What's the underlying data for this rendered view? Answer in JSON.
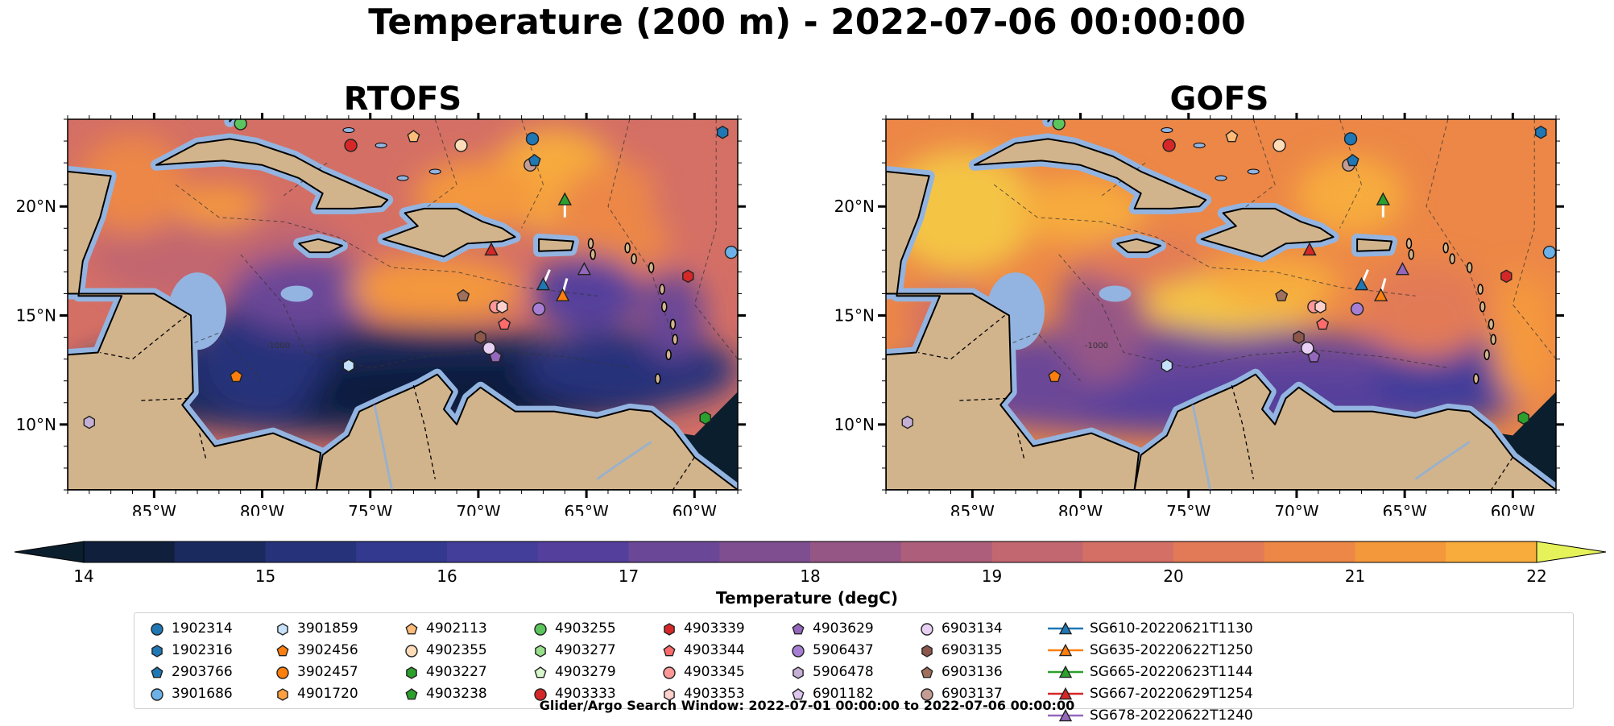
{
  "figure": {
    "title": "Temperature (200 m) - 2022-07-06 00:00:00",
    "footer": "Glider/Argo Search Window: 2022-07-01 00:00:00 to 2022-07-06 00:00:00"
  },
  "panels": [
    {
      "title": "RTOFS",
      "contour_label": "-1000"
    },
    {
      "title": "GOFS",
      "contour_label": "-1000"
    }
  ],
  "axes": {
    "lat_ticks": [
      "20°N",
      "15°N",
      "10°N"
    ],
    "lat_values": [
      20,
      15,
      10
    ],
    "lon_ticks": [
      "85°W",
      "80°W",
      "75°W",
      "70°W",
      "65°W",
      "60°W"
    ],
    "lon_values": [
      -85,
      -80,
      -75,
      -70,
      -65,
      -60
    ],
    "lon_range": [
      -89,
      -58
    ],
    "lat_range": [
      7,
      24
    ]
  },
  "colorbar": {
    "label": "Temperature (degC)",
    "min": 14,
    "max": 22,
    "step": 0.5,
    "ticks": [
      "14",
      "15",
      "16",
      "17",
      "18",
      "19",
      "20",
      "21",
      "22"
    ],
    "tick_values": [
      14,
      15,
      16,
      17,
      18,
      19,
      20,
      21,
      22
    ],
    "extend": "both",
    "colors": [
      "#0f1f3c",
      "#1a2a5e",
      "#26337a",
      "#33398f",
      "#433e9a",
      "#543f9c",
      "#6a4797",
      "#7e4e91",
      "#955686",
      "#ac5e7a",
      "#c26670",
      "#d46f65",
      "#e27a57",
      "#ec8747",
      "#f4983c",
      "#f7ac3c",
      "#f4c545"
    ],
    "under_color": "#0b1e2e",
    "over_color": "#e6f25a"
  },
  "colors": {
    "land": "#d2b48c",
    "shelf": "#93b4e0",
    "warm": "#f4a23c",
    "cool": "#3a2f7e"
  },
  "legend": {
    "items": [
      {
        "label": "1902314",
        "marker": "circle",
        "color": "#1f77b4"
      },
      {
        "label": "1902316",
        "marker": "hexagon",
        "color": "#1f77b4"
      },
      {
        "label": "2903766",
        "marker": "pentagon",
        "color": "#1f77b4"
      },
      {
        "label": "3901686",
        "marker": "circle",
        "color": "#6cb2e8"
      },
      {
        "label": "3901859",
        "marker": "hexagon",
        "color": "#c6e2fa"
      },
      {
        "label": "3902456",
        "marker": "pentagon",
        "color": "#ff7f0e"
      },
      {
        "label": "3902457",
        "marker": "circle",
        "color": "#ff7f0e"
      },
      {
        "label": "4901720",
        "marker": "hexagon",
        "color": "#ff9f3e"
      },
      {
        "label": "4902113",
        "marker": "pentagon",
        "color": "#ffbb78"
      },
      {
        "label": "4902355",
        "marker": "circle",
        "color": "#ffdcb8"
      },
      {
        "label": "4903227",
        "marker": "hexagon",
        "color": "#2ca02c"
      },
      {
        "label": "4903238",
        "marker": "pentagon",
        "color": "#2ca02c"
      },
      {
        "label": "4903255",
        "marker": "circle",
        "color": "#5cc45c"
      },
      {
        "label": "4903277",
        "marker": "hexagon",
        "color": "#98df8a"
      },
      {
        "label": "4903279",
        "marker": "pentagon",
        "color": "#d8f5cc"
      },
      {
        "label": "4903333",
        "marker": "circle",
        "color": "#d62728"
      },
      {
        "label": "4903339",
        "marker": "hexagon",
        "color": "#d62728"
      },
      {
        "label": "4903344",
        "marker": "pentagon",
        "color": "#ff6b6b"
      },
      {
        "label": "4903345",
        "marker": "circle",
        "color": "#ff9896"
      },
      {
        "label": "4903353",
        "marker": "hexagon",
        "color": "#ffd0cc"
      },
      {
        "label": "4903629",
        "marker": "pentagon",
        "color": "#9467bd"
      },
      {
        "label": "5906437",
        "marker": "circle",
        "color": "#a67fd4"
      },
      {
        "label": "5906478",
        "marker": "hexagon",
        "color": "#c5b0d5"
      },
      {
        "label": "6901182",
        "marker": "pentagon",
        "color": "#dcc6f0"
      },
      {
        "label": "6903134",
        "marker": "circle",
        "color": "#e8d0f5"
      },
      {
        "label": "6903135",
        "marker": "hexagon",
        "color": "#8c564b"
      },
      {
        "label": "6903136",
        "marker": "pentagon",
        "color": "#a0705d"
      },
      {
        "label": "6903137",
        "marker": "circle",
        "color": "#c49c94"
      },
      {
        "label": "SG610-20220621T1130",
        "marker": "triangle-line",
        "color": "#1f77b4"
      },
      {
        "label": "SG635-20220622T1250",
        "marker": "triangle-line",
        "color": "#ff7f0e"
      },
      {
        "label": "SG665-20220623T1144",
        "marker": "triangle-line",
        "color": "#2ca02c"
      },
      {
        "label": "SG667-20220629T1254",
        "marker": "triangle-line",
        "color": "#d62728"
      },
      {
        "label": "SG678-20220622T1240",
        "marker": "triangle-line",
        "color": "#9467bd"
      }
    ]
  },
  "markers": [
    {
      "id": "1902314",
      "lon": -67.5,
      "lat": 23.1
    },
    {
      "id": "1902316",
      "lon": -58.7,
      "lat": 23.4
    },
    {
      "id": "3901686",
      "lon": -58.3,
      "lat": 17.9
    },
    {
      "id": "3901859",
      "lon": -76.0,
      "lat": 12.7
    },
    {
      "id": "4902113",
      "lon": -73.0,
      "lat": 23.2
    },
    {
      "id": "4902355",
      "lon": -70.8,
      "lat": 22.8
    },
    {
      "id": "4903227",
      "lon": -59.5,
      "lat": 10.3
    },
    {
      "id": "4903255",
      "lon": -81.0,
      "lat": 23.8
    },
    {
      "id": "4903333",
      "lon": -75.9,
      "lat": 22.8
    },
    {
      "id": "4903339",
      "lon": -60.3,
      "lat": 16.8
    },
    {
      "id": "4903344",
      "lon": -68.8,
      "lat": 14.6
    },
    {
      "id": "4903345",
      "lon": -69.2,
      "lat": 15.4
    },
    {
      "id": "4903353",
      "lon": -68.9,
      "lat": 15.4
    },
    {
      "id": "4903629",
      "lon": -69.2,
      "lat": 13.1
    },
    {
      "id": "5906437",
      "lon": -67.2,
      "lat": 15.3
    },
    {
      "id": "5906478",
      "lon": -88.0,
      "lat": 10.1
    },
    {
      "id": "6903134",
      "lon": -69.5,
      "lat": 13.5
    },
    {
      "id": "6903135",
      "lon": -69.9,
      "lat": 14.0
    },
    {
      "id": "6903136",
      "lon": -70.7,
      "lat": 15.9
    },
    {
      "id": "6903137",
      "lon": -67.6,
      "lat": 21.9
    },
    {
      "id": "2903766",
      "lon": -67.4,
      "lat": 22.1
    },
    {
      "id": "3902456",
      "lon": -81.2,
      "lat": 12.2
    },
    {
      "id": "SG610-20220621T1130",
      "lon": -67.0,
      "lat": 16.4
    },
    {
      "id": "SG635-20220622T1250",
      "lon": -66.1,
      "lat": 15.9
    },
    {
      "id": "SG665-20220623T1144",
      "lon": -66.0,
      "lat": 20.3
    },
    {
      "id": "SG667-20220629T1254",
      "lon": -69.4,
      "lat": 18.0
    },
    {
      "id": "SG678-20220622T1240",
      "lon": -65.1,
      "lat": 17.1
    }
  ]
}
